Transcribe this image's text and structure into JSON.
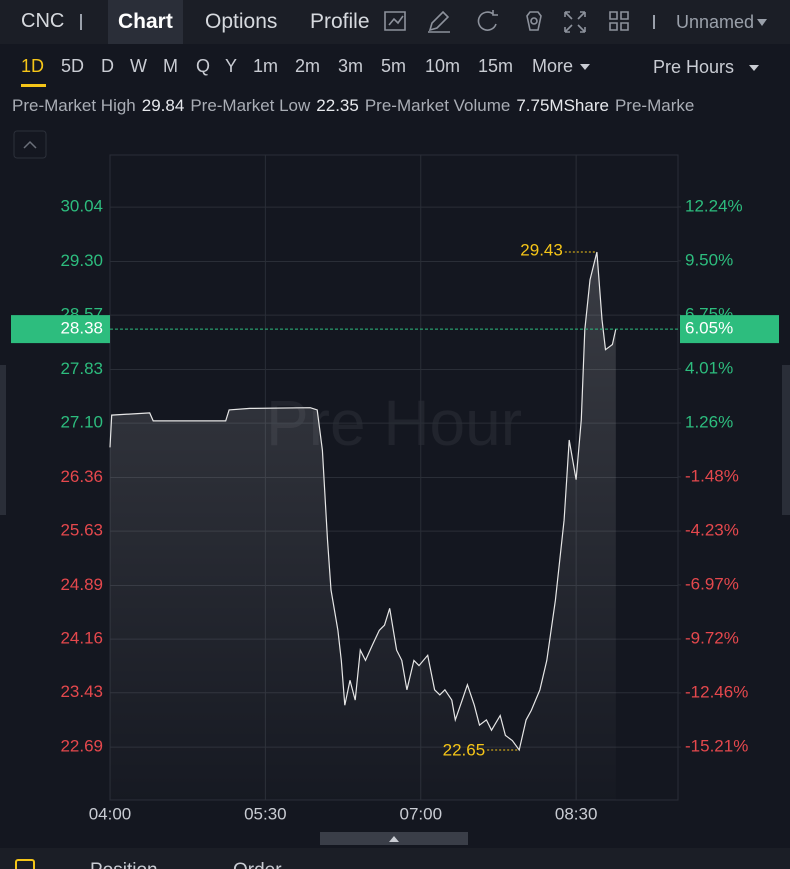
{
  "toolbar": {
    "symbol": "CNC",
    "tabs": [
      "Chart",
      "Options",
      "Profile"
    ],
    "layout": "Unnamed"
  },
  "intervals": {
    "items": [
      "1D",
      "5D",
      "D",
      "W",
      "M",
      "Q",
      "Y",
      "1m",
      "2m",
      "3m",
      "5m",
      "10m",
      "15m",
      "More"
    ],
    "session": "Pre Hours"
  },
  "stats": [
    {
      "label": "Pre-Market High",
      "value": "29.84"
    },
    {
      "label": "Pre-Market Low",
      "value": "22.35"
    },
    {
      "label": "Pre-Market Volume",
      "value": "7.75MShare"
    },
    {
      "label": "Pre-Marke"
    }
  ],
  "chart_data": {
    "type": "line",
    "watermark": "Pre Hour",
    "color": "#e6e6e6",
    "up_color": "#2dbd7e",
    "down_color": "#e5484d",
    "marker_color": "#f5c518",
    "grid": true,
    "x": [
      240,
      241,
      263,
      265,
      307,
      309,
      321,
      356,
      360,
      363,
      366,
      368,
      372,
      374,
      376,
      379,
      382,
      385,
      388,
      392,
      396,
      399,
      402,
      406,
      409,
      412,
      416,
      419,
      424,
      428,
      431,
      434,
      438,
      440,
      444,
      447,
      451,
      454,
      458,
      461,
      466,
      469,
      473,
      477,
      481,
      484,
      489,
      493,
      498,
      503,
      506,
      510,
      513,
      515,
      518,
      522,
      525,
      527,
      531,
      533
    ],
    "values": [
      26.77,
      27.21,
      27.24,
      27.13,
      27.13,
      27.28,
      27.3,
      27.31,
      27.28,
      26.73,
      25.51,
      24.83,
      24.28,
      23.87,
      23.26,
      23.6,
      23.33,
      24.01,
      23.87,
      24.08,
      24.28,
      24.35,
      24.58,
      24.01,
      23.87,
      23.47,
      23.87,
      23.8,
      23.94,
      23.47,
      23.4,
      23.47,
      23.33,
      23.06,
      23.33,
      23.54,
      23.26,
      22.99,
      23.06,
      22.92,
      23.12,
      22.85,
      22.78,
      22.65,
      23.06,
      23.19,
      23.47,
      23.87,
      24.69,
      25.78,
      26.87,
      26.33,
      27.15,
      28.37,
      29.05,
      29.43,
      28.51,
      28.1,
      28.17,
      28.38
    ],
    "xlim": [
      240,
      569
    ],
    "xticks": [
      {
        "value": 240,
        "label": "04:00"
      },
      {
        "value": 330,
        "label": "05:30"
      },
      {
        "value": 420,
        "label": "07:00"
      },
      {
        "value": 510,
        "label": "08:30"
      }
    ],
    "ylim": [
      21.97,
      30.75
    ],
    "yticks": [
      30.04,
      {
        "value": 29.3,
        "label": "29.30"
      },
      28.57,
      27.83,
      {
        "value": 27.1,
        "label": "27.10"
      },
      26.36,
      25.63,
      24.89,
      24.16,
      23.43,
      22.69
    ],
    "y2lim": [
      -17.9,
      14.88
    ],
    "y2ticks": [
      {
        "value": 12.24,
        "label": "12.24%"
      },
      {
        "value": 9.5,
        "label": "9.50%"
      },
      {
        "value": 6.75,
        "label": "6.75%"
      },
      {
        "value": 4.01,
        "label": "4.01%"
      },
      {
        "value": 1.26,
        "label": "1.26%"
      },
      {
        "value": -1.48,
        "label": "-1.48%"
      },
      {
        "value": -4.23,
        "label": "-4.23%"
      },
      {
        "value": -6.97,
        "label": "-6.97%"
      },
      {
        "value": -9.72,
        "label": "-9.72%"
      },
      {
        "value": -12.46,
        "label": "-12.46%"
      },
      {
        "value": -15.21,
        "label": "-15.21%"
      }
    ],
    "current": {
      "value": 28.38,
      "change": {
        "value": 6.05,
        "label": "6.05%"
      }
    },
    "high_marker": {
      "x": 522,
      "value": 29.43
    },
    "low_marker": {
      "x": 477,
      "value": 22.65
    }
  },
  "bottom_tabs": [
    "Position",
    "Order"
  ]
}
